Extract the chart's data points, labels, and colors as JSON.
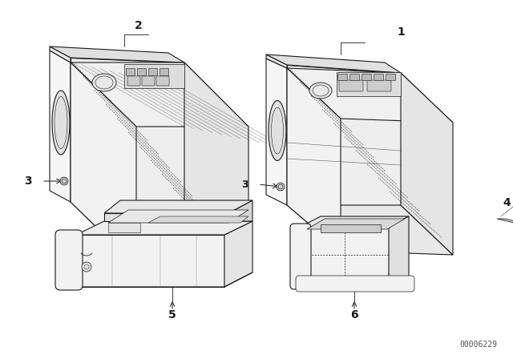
{
  "background_color": "#ffffff",
  "figure_width": 6.4,
  "figure_height": 4.48,
  "dpi": 100,
  "watermark": "00006229",
  "line_color": "#1a1a1a",
  "label_fontsize": 10,
  "label_fontweight": "bold"
}
